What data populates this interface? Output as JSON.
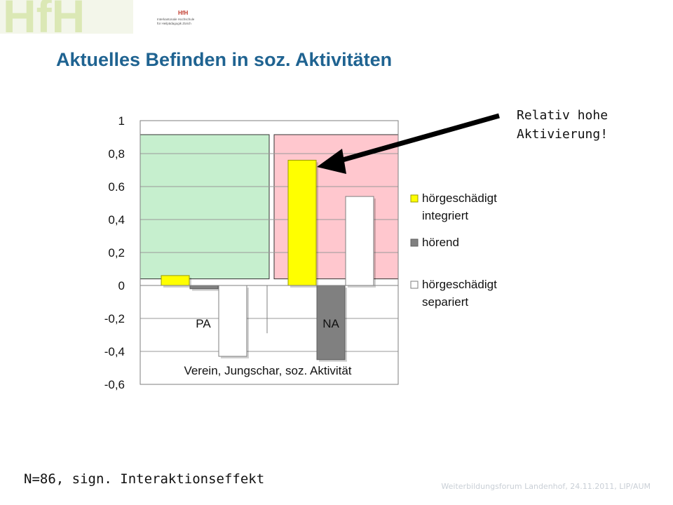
{
  "slide": {
    "title": "Aktuelles Befinden in soz. Aktivitäten",
    "note": "N=86, sign. Interaktionseffekt",
    "footer": "Weiterbildungsforum Landenhof, 24.11.2011, LIP/AUM",
    "logo": {
      "text": "HfH",
      "line1": "Interkantonale Hochschule",
      "line2": "für Heilpädagogik Zürich"
    }
  },
  "colors": {
    "title": "#1f6391",
    "pa_background": "#c6efce",
    "na_background": "#ffc7ce",
    "series_integriert": "#ffff00",
    "series_hoerend": "#808080",
    "series_separiert": "#ffffff"
  },
  "chart_data": {
    "type": "bar",
    "categories": [
      "PA",
      "NA"
    ],
    "xlabel": "Verein, Jungschar, soz. Aktivität",
    "ylim": [
      -0.6,
      1.0
    ],
    "ytick_values": [
      -0.6,
      -0.4,
      -0.2,
      0,
      0.2,
      0.4,
      0.6,
      0.8,
      1.0
    ],
    "ytick_labels": [
      "-0,6",
      "-0,4",
      "-0,2",
      "0",
      "0,2",
      "0,4",
      "0.6",
      "0,8",
      "1"
    ],
    "legend_position": "right",
    "series": [
      {
        "name": "hörgeschädigt integriert",
        "legend_lines": [
          "hörgeschädigt",
          "integriert"
        ],
        "values": [
          0.06,
          0.76
        ]
      },
      {
        "name": "hörend",
        "legend_lines": [
          "hörend"
        ],
        "values": [
          -0.02,
          -0.45
        ]
      },
      {
        "name": "hörgeschädigt separiert",
        "legend_lines": [
          "hörgeschädigt",
          "separiert"
        ],
        "values": [
          -0.43,
          0.54
        ]
      }
    ],
    "annotation": {
      "lines": [
        "Relativ hohe",
        "Aktivierung!"
      ],
      "points_to": "NA / hörgeschädigt integriert"
    }
  }
}
